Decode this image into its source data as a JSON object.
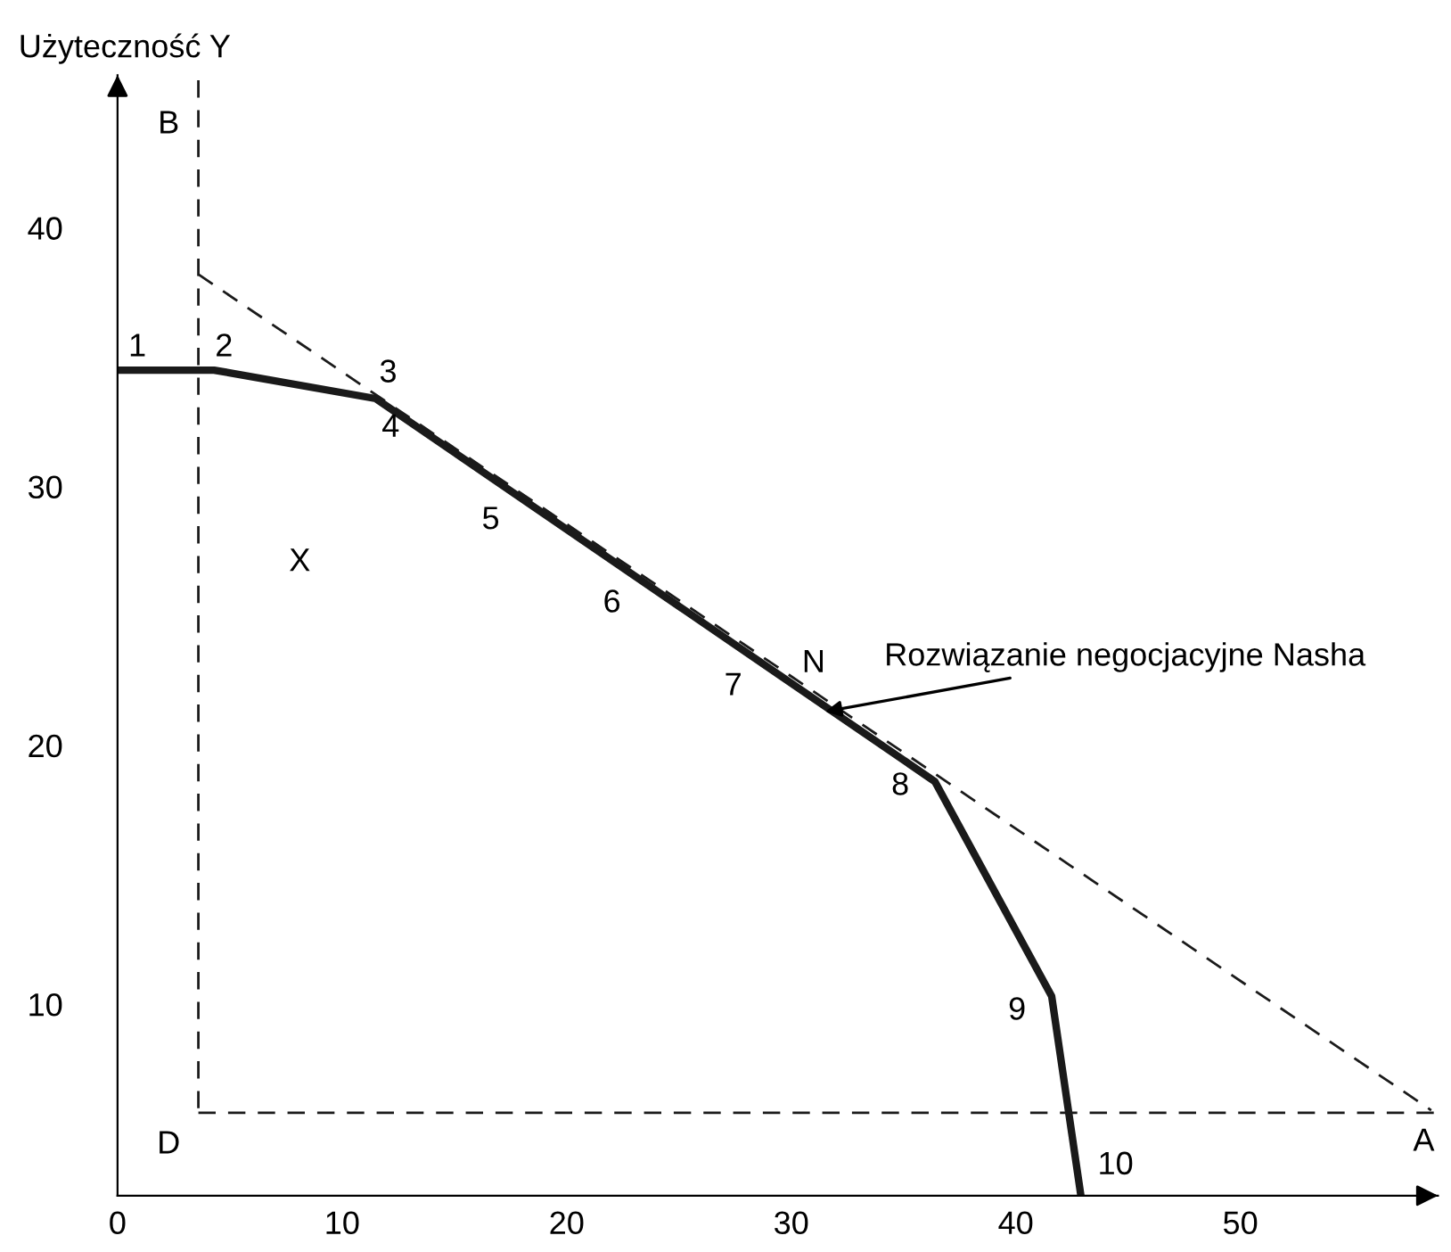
{
  "chart_data": {
    "type": "line",
    "ylabel": "Użyteczność Y",
    "xlim": [
      0,
      58.8
    ],
    "ylim": [
      2.6,
      45.9
    ],
    "xticks": [
      0,
      10,
      20,
      30,
      40,
      50
    ],
    "yticks": [
      10,
      20,
      30,
      40
    ],
    "grid": false,
    "marker": "none",
    "series": [
      {
        "color": "#1a1a1a",
        "line_style": "solid",
        "x": [
          0,
          4.3,
          11.5,
          36.4,
          41.6,
          42.9
        ],
        "values": [
          34.5,
          34.5,
          33.4,
          18.6,
          10.3,
          2.6
        ]
      },
      {
        "color": "#1a1a1a",
        "line_style": "dashed",
        "x": [
          3.6,
          3.6
        ],
        "values": [
          45.7,
          5.8
        ]
      },
      {
        "color": "#1a1a1a",
        "line_style": "dashed",
        "x": [
          3.6,
          58.8
        ],
        "values": [
          5.8,
          5.8
        ]
      },
      {
        "color": "#1a1a1a",
        "line_style": "dashed",
        "x": [
          3.6,
          58.5
        ],
        "values": [
          38.2,
          5.9
        ]
      }
    ],
    "annotations": [
      {
        "text": "1",
        "x": 0,
        "y": 34.5
      },
      {
        "text": "2",
        "x": 4.3,
        "y": 34.5
      },
      {
        "text": "3",
        "x": 11.5,
        "y": 33.4
      },
      {
        "text": "4",
        "x": 11.5,
        "y": 33.4
      },
      {
        "text": "5",
        "x": 17.5,
        "y": 29.83
      },
      {
        "text": "6",
        "x": 22.9,
        "y": 26.62
      },
      {
        "text": "7",
        "x": 28.3,
        "y": 23.41
      },
      {
        "text": "N",
        "x": 31.0,
        "y": 21.81
      },
      {
        "text": "8",
        "x": 36.4,
        "y": 18.6
      },
      {
        "text": "9",
        "x": 41.6,
        "y": 10.3
      },
      {
        "text": "10",
        "x": 42.9,
        "y": 2.6
      },
      {
        "text": "A",
        "x": 58.5,
        "y": 5.9
      },
      {
        "text": "D",
        "x": 3.6,
        "y": 5.8
      },
      {
        "text": "B",
        "x": 3.6,
        "y": 45.7
      },
      "X",
      {
        "text": "Rozwiązanie negocjacyjne Nasha",
        "x": 31.5,
        "y": 21.3
      }
    ]
  }
}
